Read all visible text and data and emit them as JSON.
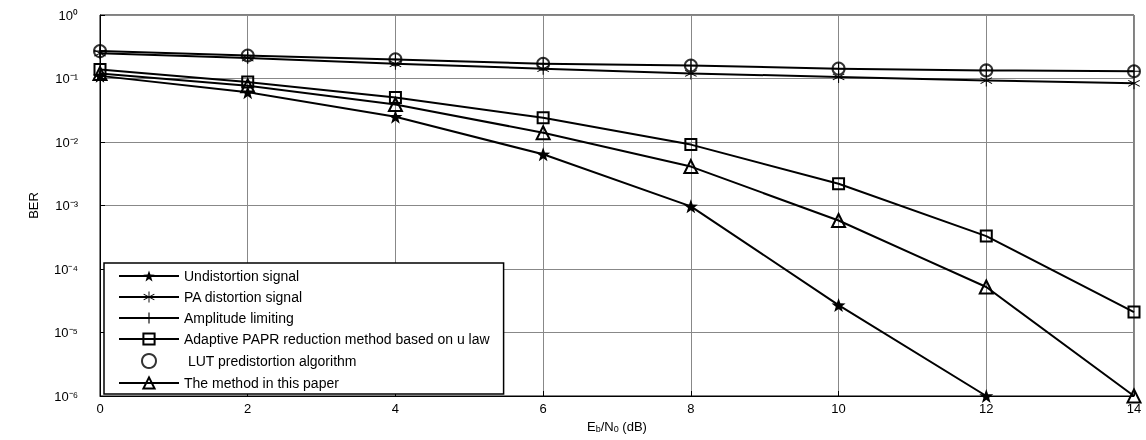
{
  "chart_data": {
    "type": "line",
    "xlabel": "E$_{b}$/N$_{0}$ (dB)",
    "ylabel": "BER",
    "log": "y",
    "grid": true,
    "legend": "bottom left",
    "x": [
      0,
      2,
      4,
      6,
      8,
      10,
      12,
      14
    ],
    "xlim": [
      0,
      14
    ],
    "xticks": [
      0,
      2,
      4,
      6,
      8,
      10,
      12,
      14
    ],
    "ylim": [
      1e-06,
      1
    ],
    "yticks": [
      {
        "value": 1e-06,
        "label": "10⁻⁶"
      },
      {
        "value": 1e-05,
        "label": "10⁻⁵"
      },
      {
        "value": 0.0001,
        "label": "10⁻⁴"
      },
      {
        "value": 0.001,
        "label": "10⁻³"
      },
      {
        "value": 0.01,
        "label": "10⁻²"
      },
      {
        "value": 0.1,
        "label": "10⁻¹"
      },
      {
        "value": 1,
        "label": "10⁰"
      }
    ],
    "series": [
      {
        "name": "Undistortion signal",
        "color": "#000000",
        "marker": "star",
        "values": [
          0.11,
          0.061,
          0.025,
          0.0064,
          0.00097,
          2.7e-05,
          1e-06,
          null
        ]
      },
      {
        "name": "PA distortion signal",
        "color": "#000000",
        "marker": "asterisk",
        "values": [
          0.25,
          0.21,
          0.17,
          0.143,
          0.12,
          0.106,
          0.093,
          0.084
        ]
      },
      {
        "name": "Amplitude limiting",
        "color": "#000000",
        "marker": "cross",
        "values": [
          0.27,
          0.23,
          0.2,
          0.17,
          0.16,
          0.143,
          0.134,
          0.13
        ]
      },
      {
        "name": "Adaptive PAPR reduction method based on u law",
        "color": "#000000",
        "marker": "square",
        "values": [
          0.138,
          0.088,
          0.05,
          0.024,
          0.0091,
          0.0022,
          0.00033,
          2.1e-05
        ]
      },
      {
        "name": " LUT predistortion algorithm",
        "color": "#000000",
        "marker": "circle",
        "type": "scatter",
        "values": [
          0.27,
          0.23,
          0.2,
          0.17,
          0.16,
          0.143,
          0.134,
          0.13
        ]
      },
      {
        "name": "The method in this paper",
        "color": "#000000",
        "marker": "triangle",
        "values": [
          0.12,
          0.077,
          0.039,
          0.014,
          0.0041,
          0.00058,
          5.2e-05,
          1e-06
        ]
      }
    ]
  }
}
